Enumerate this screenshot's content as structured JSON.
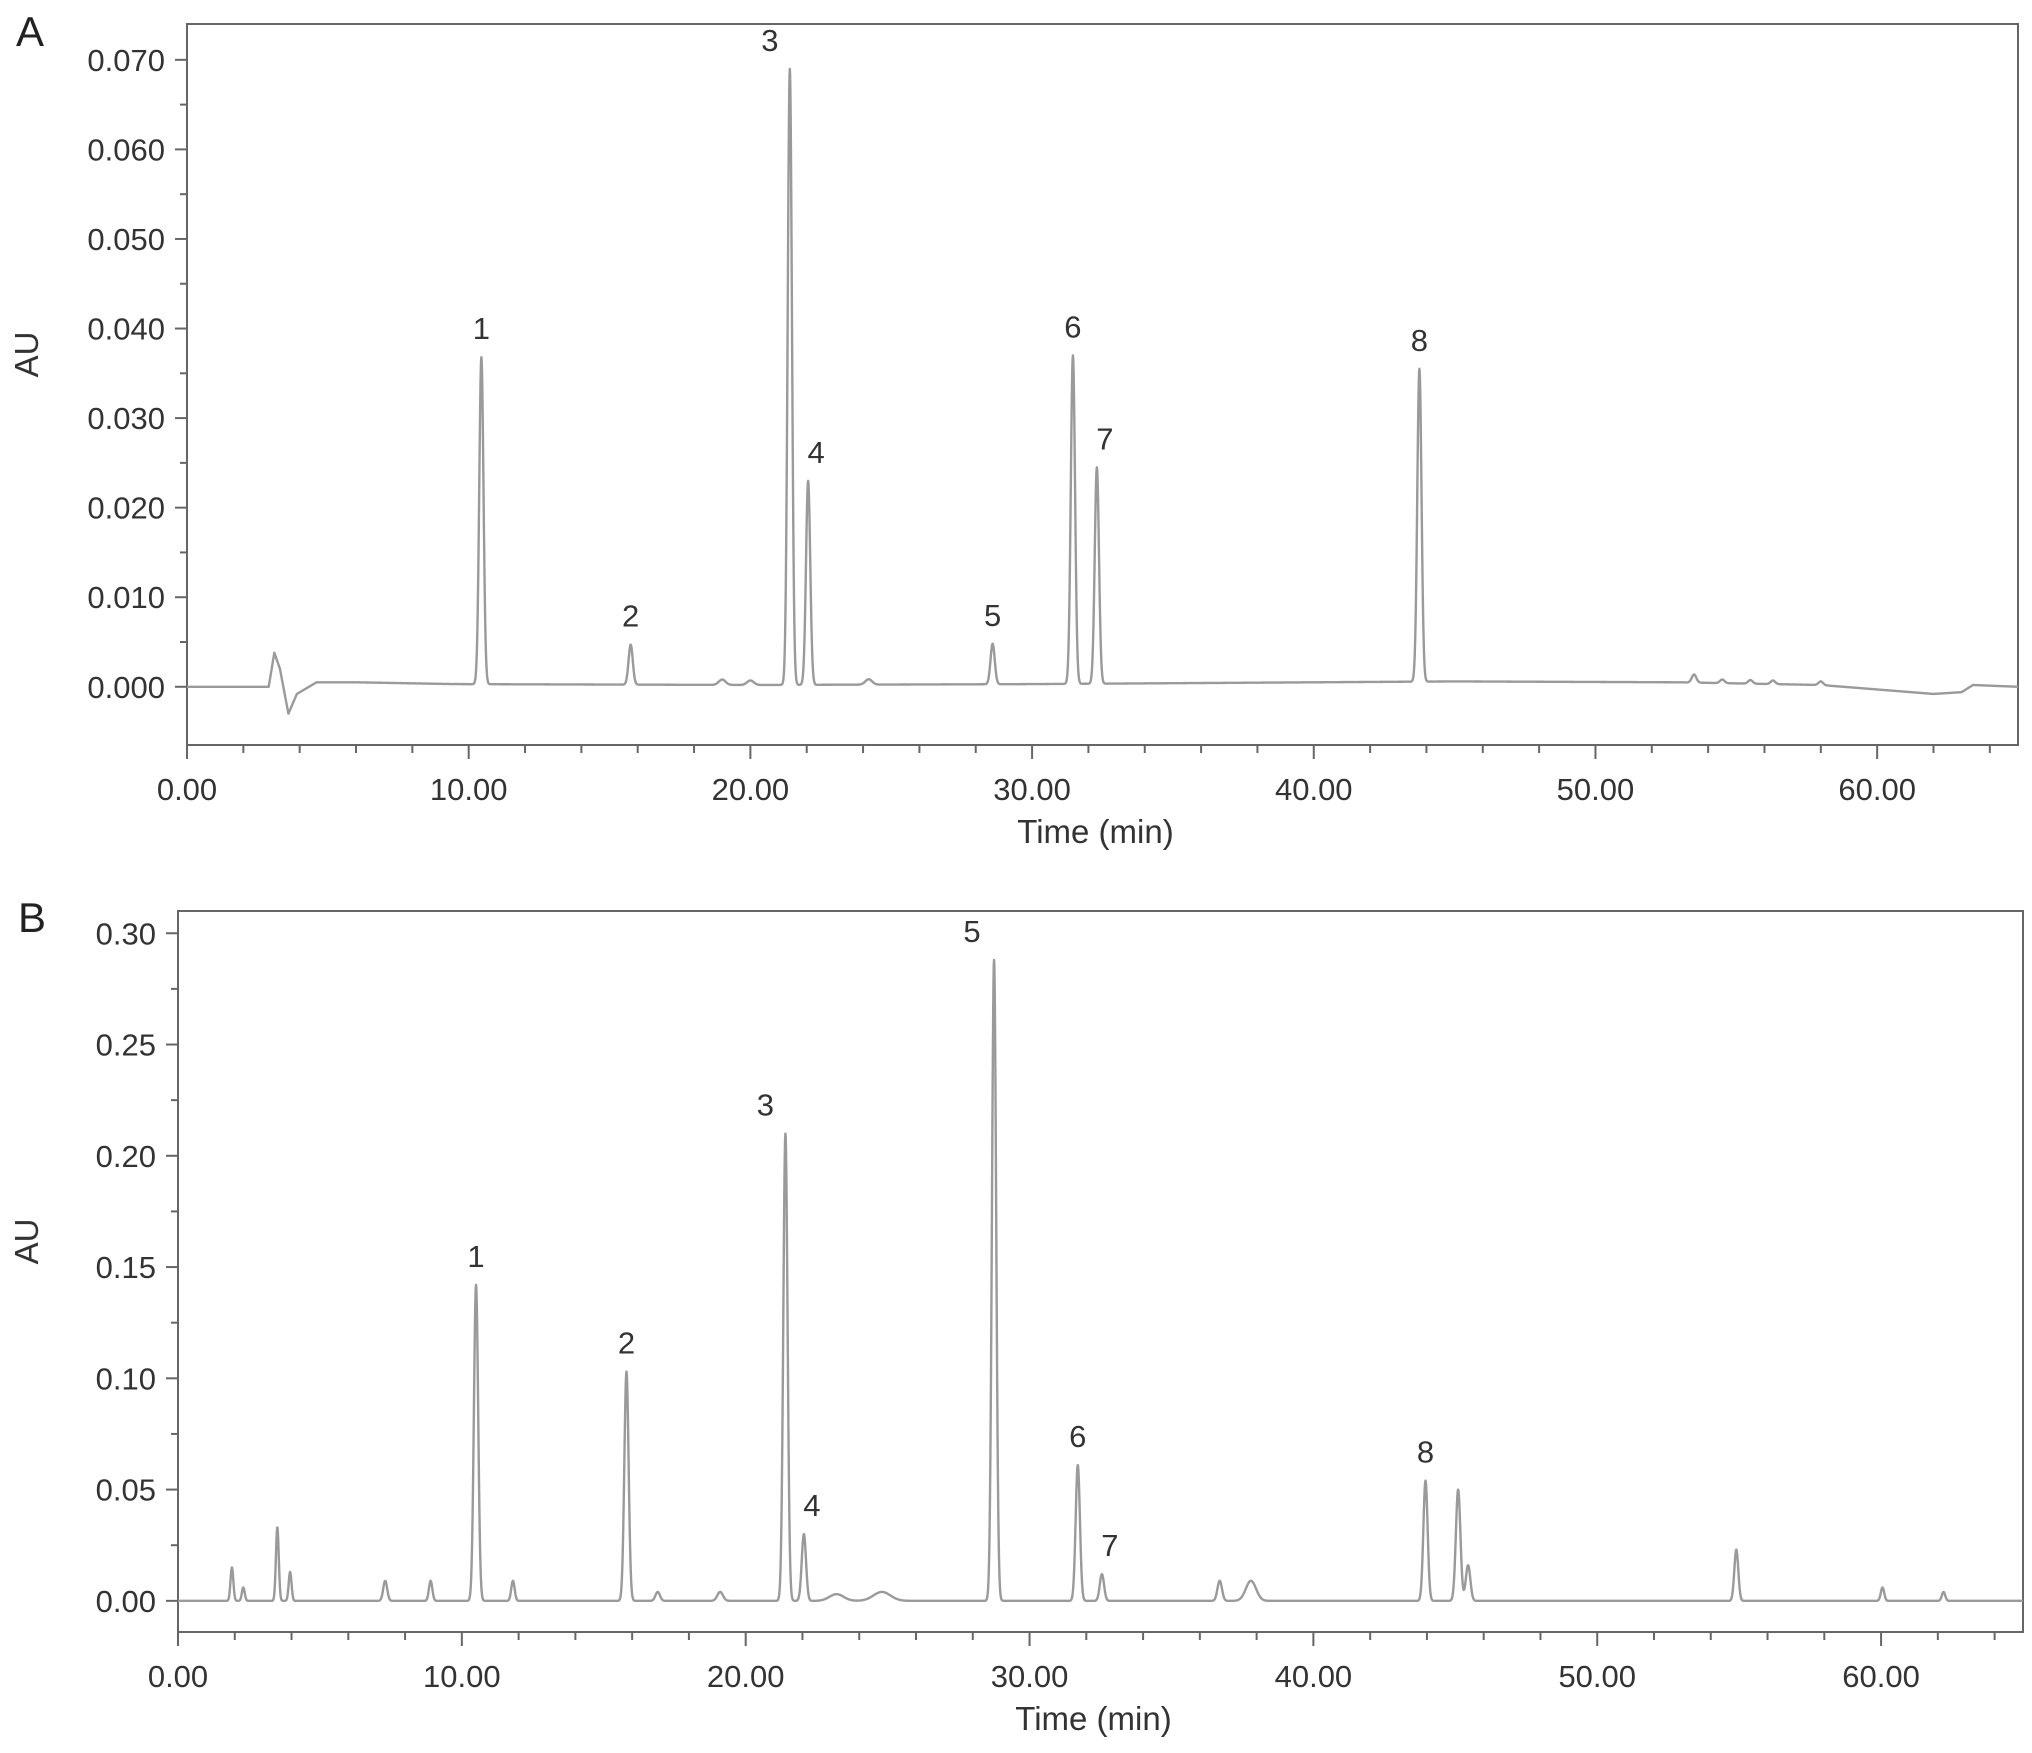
{
  "chart_data": [
    {
      "type": "line",
      "panel_label": "A",
      "xlabel": "Time (min)",
      "ylabel": "AU",
      "xlim": [
        0,
        65
      ],
      "ylim": [
        -0.0065,
        0.074
      ],
      "x_major_ticks": [
        0,
        10,
        20,
        30,
        40,
        50,
        60
      ],
      "x_tick_labels": [
        "0.00",
        "10.00",
        "20.00",
        "30.00",
        "40.00",
        "50.00",
        "60.00"
      ],
      "y_ticks": [
        0,
        0.01,
        0.02,
        0.03,
        0.04,
        0.05,
        0.06,
        0.07
      ],
      "y_tick_labels": [
        "0.000",
        "0.010",
        "0.020",
        "0.030",
        "0.040",
        "0.050",
        "0.060",
        "0.070"
      ],
      "grid": false,
      "peaks": [
        {
          "label": "1",
          "x": 10.45,
          "y": 0.0368
        },
        {
          "label": "2",
          "x": 15.75,
          "y": 0.0047
        },
        {
          "label": "3",
          "x": 21.4,
          "y": 0.069
        },
        {
          "label": "4",
          "x": 22.05,
          "y": 0.023
        },
        {
          "label": "5",
          "x": 28.6,
          "y": 0.0048
        },
        {
          "label": "6",
          "x": 31.45,
          "y": 0.037
        },
        {
          "label": "7",
          "x": 32.3,
          "y": 0.0245
        },
        {
          "label": "8",
          "x": 43.75,
          "y": 0.0355
        }
      ],
      "baseline": [
        [
          0,
          0
        ],
        [
          2.9,
          0
        ],
        [
          3.1,
          0.0038
        ],
        [
          3.3,
          0.002
        ],
        [
          3.6,
          -0.003
        ],
        [
          3.9,
          -0.0008
        ],
        [
          4.6,
          0.0005
        ],
        [
          6,
          0.0005
        ],
        [
          9.5,
          0.0003
        ],
        [
          20,
          0.0002
        ],
        [
          30,
          0.0003
        ],
        [
          35,
          0.0004
        ],
        [
          45,
          0.0006
        ],
        [
          53,
          0.0005
        ],
        [
          58,
          0.0002
        ],
        [
          62,
          -0.0008
        ],
        [
          63,
          -0.0006
        ],
        [
          63.4,
          0.0002
        ],
        [
          65,
          0
        ]
      ],
      "minor_peaks": [
        {
          "x": 19,
          "y": 0.0006,
          "w": 0.12
        },
        {
          "x": 20,
          "y": 0.0005,
          "w": 0.12
        },
        {
          "x": 24.2,
          "y": 0.0006,
          "w": 0.12
        },
        {
          "x": 53.5,
          "y": 0.0009,
          "w": 0.08
        },
        {
          "x": 54.5,
          "y": 0.0004,
          "w": 0.08
        },
        {
          "x": 55.5,
          "y": 0.0004,
          "w": 0.08
        },
        {
          "x": 56.3,
          "y": 0.0004,
          "w": 0.08
        },
        {
          "x": 58,
          "y": 0.0004,
          "w": 0.08
        }
      ]
    },
    {
      "type": "line",
      "panel_label": "B",
      "xlabel": "Time (min)",
      "ylabel": "AU",
      "xlim": [
        0,
        65
      ],
      "ylim": [
        -0.014,
        0.31
      ],
      "x_major_ticks": [
        0,
        10,
        20,
        30,
        40,
        50,
        60
      ],
      "x_tick_labels": [
        "0.00",
        "10.00",
        "20.00",
        "30.00",
        "40.00",
        "50.00",
        "60.00"
      ],
      "y_ticks": [
        0,
        0.05,
        0.1,
        0.15,
        0.2,
        0.25,
        0.3
      ],
      "y_tick_labels": [
        "0.00",
        "0.05",
        "0.10",
        "0.15",
        "0.20",
        "0.25",
        "0.30"
      ],
      "grid": false,
      "peaks": [
        {
          "label": "1",
          "x": 10.5,
          "y": 0.142
        },
        {
          "label": "2",
          "x": 15.8,
          "y": 0.103
        },
        {
          "label": "3",
          "x": 21.4,
          "y": 0.21
        },
        {
          "label": "4",
          "x": 22.05,
          "y": 0.03
        },
        {
          "label": "5",
          "x": 28.75,
          "y": 0.288
        },
        {
          "label": "6",
          "x": 31.7,
          "y": 0.061
        },
        {
          "label": "7",
          "x": 32.55,
          "y": 0.012
        },
        {
          "label": "8",
          "x": 43.95,
          "y": 0.054
        }
      ],
      "baseline": [
        [
          0,
          0
        ],
        [
          65,
          0
        ]
      ],
      "minor_peaks": [
        {
          "x": 1.9,
          "y": 0.015,
          "w": 0.05
        },
        {
          "x": 2.3,
          "y": 0.006,
          "w": 0.05
        },
        {
          "x": 3.5,
          "y": 0.033,
          "w": 0.05
        },
        {
          "x": 3.95,
          "y": 0.013,
          "w": 0.05
        },
        {
          "x": 7.3,
          "y": 0.009,
          "w": 0.07
        },
        {
          "x": 8.9,
          "y": 0.009,
          "w": 0.06
        },
        {
          "x": 11.8,
          "y": 0.009,
          "w": 0.06
        },
        {
          "x": 16.9,
          "y": 0.004,
          "w": 0.08
        },
        {
          "x": 19.1,
          "y": 0.004,
          "w": 0.1
        },
        {
          "x": 23.2,
          "y": 0.003,
          "w": 0.25
        },
        {
          "x": 24.8,
          "y": 0.004,
          "w": 0.3
        },
        {
          "x": 36.7,
          "y": 0.009,
          "w": 0.08
        },
        {
          "x": 37.8,
          "y": 0.009,
          "w": 0.18
        },
        {
          "x": 45.1,
          "y": 0.05,
          "w": 0.08
        },
        {
          "x": 45.45,
          "y": 0.016,
          "w": 0.08
        },
        {
          "x": 54.9,
          "y": 0.023,
          "w": 0.07
        },
        {
          "x": 60.05,
          "y": 0.006,
          "w": 0.06
        },
        {
          "x": 62.2,
          "y": 0.004,
          "w": 0.06
        }
      ]
    }
  ]
}
